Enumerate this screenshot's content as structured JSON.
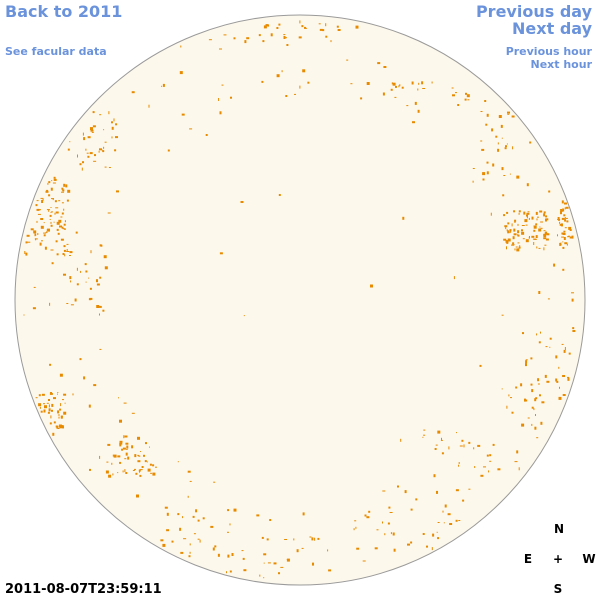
{
  "links": {
    "back": "Back to 2011",
    "facular": "See facular data",
    "previous_day": "Previous day",
    "next_day": "Next day",
    "previous_hour": "Previous hour",
    "next_hour": "Next hour"
  },
  "timestamp": "2011-08-07T23:59:11",
  "compass": {
    "north": "N",
    "east": "E",
    "center": "+",
    "west": "W",
    "south": "S"
  }
}
